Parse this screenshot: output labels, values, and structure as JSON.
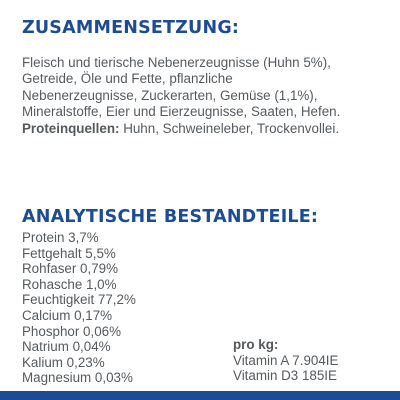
{
  "composition": {
    "heading": "ZUSAMMENSETZUNG:",
    "lines": [
      "Fleisch und tierische Nebenerzeugnisse (Huhn 5%),",
      "Getreide, Öle und Fette, pflanzliche",
      "Nebenerzeugnisse, Zuckerarten, Gemüse (1,1%),",
      "Mineralstoffe, Eier und Eierzeugnisse, Saaten, Hefen."
    ],
    "protein_label": "Proteinquellen:",
    "protein_sources": " Huhn, Schweineleber, Trockenvollei."
  },
  "analytics": {
    "heading": "ANALYTISCHE BESTANDTEILE:",
    "items": [
      "Protein 3,7%",
      "Fettgehalt 5,5%",
      "Rohfaser 0,79%",
      "Rohasche 1,0%",
      "Feuchtigkeit 77,2%",
      "Calcium 0,17%",
      "Phosphor 0,06%",
      "Natrium 0,04%",
      "Kalium 0,23%",
      "Magnesium 0,03%"
    ],
    "per_kg": {
      "label": "pro kg:",
      "items": [
        "Vitamin A 7.904IE",
        "Vitamin D3 185IE"
      ]
    }
  },
  "colors": {
    "heading": "#1c4c96",
    "body_text": "#555a5e",
    "bottom_bar": "#1c4c96",
    "background": "#ffffff"
  }
}
